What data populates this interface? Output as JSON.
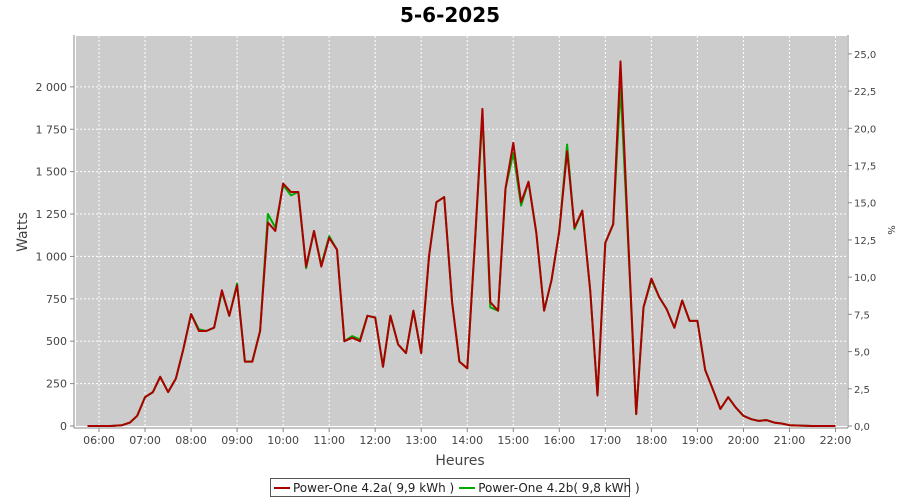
{
  "chart_data": {
    "type": "line",
    "title": "5-6-2025",
    "xlabel": "Heures",
    "ylabel": "Watts",
    "y2label": "%",
    "xlim": [
      5.5,
      22.25
    ],
    "ylim": [
      0,
      2300
    ],
    "y2lim": [
      0,
      26.2
    ],
    "x_ticks": [
      "06:00",
      "07:00",
      "08:00",
      "09:00",
      "10:00",
      "11:00",
      "12:00",
      "13:00",
      "14:00",
      "15:00",
      "16:00",
      "17:00",
      "18:00",
      "19:00",
      "20:00",
      "21:00",
      "22:00"
    ],
    "y_ticks": [
      "0",
      "250",
      "500",
      "750",
      "1 000",
      "1 250",
      "1 500",
      "1 750",
      "2 000"
    ],
    "y2_ticks": [
      "0,0",
      "2,5",
      "5,0",
      "7,5",
      "10,0",
      "12,5",
      "15,0",
      "17,5",
      "20,0",
      "22,5",
      "25,0"
    ],
    "grid": true,
    "legend_position": "bottom",
    "background": "#cccccc",
    "series": [
      {
        "name": "Power-One 4.2a( 9,9 kWh )",
        "color": "#aa0000",
        "x": [
          5.75,
          6.25,
          6.5,
          6.67,
          6.83,
          7.0,
          7.17,
          7.33,
          7.5,
          7.67,
          7.83,
          8.0,
          8.17,
          8.33,
          8.5,
          8.67,
          8.83,
          9.0,
          9.17,
          9.33,
          9.5,
          9.67,
          9.83,
          10.0,
          10.17,
          10.33,
          10.5,
          10.67,
          10.83,
          11.0,
          11.17,
          11.33,
          11.5,
          11.67,
          11.83,
          12.0,
          12.17,
          12.33,
          12.5,
          12.67,
          12.83,
          13.0,
          13.17,
          13.33,
          13.5,
          13.67,
          13.83,
          14.0,
          14.17,
          14.33,
          14.5,
          14.67,
          14.83,
          15.0,
          15.17,
          15.33,
          15.5,
          15.67,
          15.83,
          16.0,
          16.17,
          16.33,
          16.5,
          16.67,
          16.83,
          17.0,
          17.17,
          17.33,
          17.5,
          17.67,
          17.83,
          18.0,
          18.17,
          18.33,
          18.5,
          18.67,
          18.83,
          19.0,
          19.17,
          19.33,
          19.5,
          19.67,
          19.83,
          20.0,
          20.17,
          20.33,
          20.5,
          20.67,
          20.83,
          21.0,
          21.5,
          22.0
        ],
        "y": [
          0,
          0,
          5,
          20,
          60,
          170,
          200,
          290,
          200,
          280,
          450,
          660,
          560,
          560,
          580,
          800,
          650,
          830,
          380,
          380,
          560,
          1200,
          1150,
          1430,
          1380,
          1380,
          940,
          1150,
          940,
          1110,
          1040,
          500,
          520,
          500,
          650,
          640,
          350,
          650,
          480,
          430,
          680,
          430,
          1000,
          1320,
          1350,
          730,
          380,
          340,
          1100,
          1870,
          730,
          680,
          1400,
          1670,
          1320,
          1440,
          1140,
          680,
          860,
          1150,
          1620,
          1170,
          1270,
          800,
          180,
          1080,
          1190,
          2150,
          1080,
          70,
          700,
          870,
          760,
          690,
          580,
          740,
          620,
          620,
          330,
          220,
          100,
          170,
          110,
          60,
          40,
          30,
          35,
          20,
          15,
          5,
          0,
          0
        ]
      },
      {
        "name": "Power-One 4.2b( 9,8 kWh )",
        "color": "#00aa00",
        "x": [
          5.75,
          6.25,
          6.5,
          6.67,
          6.83,
          7.0,
          7.17,
          7.33,
          7.5,
          7.67,
          7.83,
          8.0,
          8.17,
          8.33,
          8.5,
          8.67,
          8.83,
          9.0,
          9.17,
          9.33,
          9.5,
          9.67,
          9.83,
          10.0,
          10.17,
          10.33,
          10.5,
          10.67,
          10.83,
          11.0,
          11.17,
          11.33,
          11.5,
          11.67,
          11.83,
          12.0,
          12.17,
          12.33,
          12.5,
          12.67,
          12.83,
          13.0,
          13.17,
          13.33,
          13.5,
          13.67,
          13.83,
          14.0,
          14.17,
          14.33,
          14.5,
          14.67,
          14.83,
          15.0,
          15.17,
          15.33,
          15.5,
          15.67,
          15.83,
          16.0,
          16.17,
          16.33,
          16.5,
          16.67,
          16.83,
          17.0,
          17.17,
          17.33,
          17.5,
          17.67,
          17.83,
          18.0,
          18.17,
          18.33,
          18.5,
          18.67,
          18.83,
          19.0,
          19.17,
          19.33,
          19.5,
          19.67,
          19.83,
          20.0,
          20.17,
          20.33,
          20.5,
          20.67,
          20.83,
          21.0,
          21.5,
          22.0
        ],
        "y": [
          0,
          0,
          5,
          20,
          60,
          170,
          200,
          290,
          200,
          280,
          450,
          660,
          570,
          560,
          580,
          790,
          650,
          840,
          380,
          380,
          560,
          1250,
          1170,
          1420,
          1360,
          1380,
          930,
          1150,
          950,
          1120,
          1040,
          500,
          530,
          510,
          650,
          640,
          350,
          650,
          480,
          430,
          680,
          430,
          1000,
          1320,
          1350,
          730,
          380,
          340,
          1100,
          1830,
          700,
          680,
          1400,
          1610,
          1300,
          1440,
          1140,
          680,
          860,
          1150,
          1660,
          1160,
          1270,
          800,
          180,
          1080,
          1190,
          2000,
          1050,
          70,
          700,
          860,
          760,
          690,
          580,
          740,
          620,
          620,
          330,
          220,
          100,
          170,
          110,
          60,
          40,
          30,
          35,
          20,
          15,
          5,
          0,
          0
        ]
      }
    ]
  }
}
